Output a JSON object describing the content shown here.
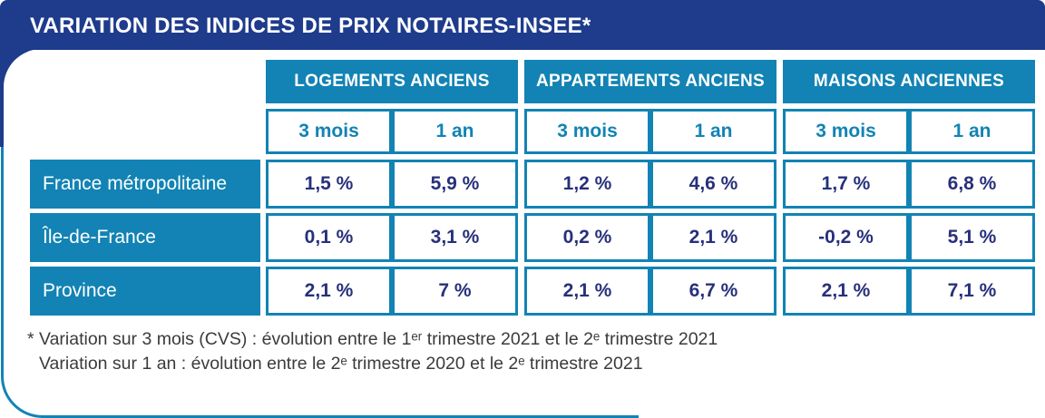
{
  "title": "VARIATION DES INDICES DE PRIX NOTAIRES-INSEE*",
  "colors": {
    "title_band": "#1E3B8C",
    "table_blue": "#1283B4",
    "value_text": "#27307B",
    "footnote_text": "#3B3B3B"
  },
  "chart_data": {
    "type": "table",
    "title": "VARIATION DES INDICES DE PRIX NOTAIRES-INSEE*",
    "column_groups": [
      "LOGEMENTS ANCIENS",
      "APPARTEMENTS ANCIENS",
      "MAISONS ANCIENNES"
    ],
    "sub_columns": [
      "3 mois",
      "1 an"
    ],
    "rows": [
      {
        "label": "France métropolitaine",
        "values": [
          "1,5 %",
          "5,9 %",
          "1,2 %",
          "4,6 %",
          "1,7 %",
          "6,8 %"
        ]
      },
      {
        "label": "Île-de-France",
        "values": [
          "0,1 %",
          "3,1 %",
          "0,2 %",
          "2,1 %",
          "-0,2 %",
          "5,1 %"
        ]
      },
      {
        "label": "Province",
        "values": [
          "2,1 %",
          "7 %",
          "2,1 %",
          "6,7 %",
          "2,1 %",
          "7,1 %"
        ]
      }
    ],
    "footnotes": [
      "* Variation sur 3 mois (CVS) : évolution entre le 1ᵉʳ trimestre 2021 et le 2ᵉ trimestre 2021",
      "Variation sur 1 an : évolution entre le 2ᵉ trimestre 2020 et le 2ᵉ trimestre 2021"
    ]
  }
}
